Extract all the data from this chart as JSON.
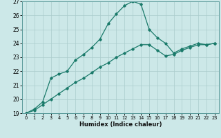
{
  "xlabel": "Humidex (Indice chaleur)",
  "ylabel": "",
  "bg_color": "#cce8e8",
  "grid_color": "#aacccc",
  "line_color": "#1a7a6a",
  "xlim": [
    -0.5,
    23.5
  ],
  "ylim": [
    19,
    27
  ],
  "xticks": [
    0,
    1,
    2,
    3,
    4,
    5,
    6,
    7,
    8,
    9,
    10,
    11,
    12,
    13,
    14,
    15,
    16,
    17,
    18,
    19,
    20,
    21,
    22,
    23
  ],
  "yticks": [
    19,
    20,
    21,
    22,
    23,
    24,
    25,
    26,
    27
  ],
  "line1_x": [
    0,
    1,
    2,
    3,
    4,
    5,
    6,
    7,
    8,
    9,
    10,
    11,
    12,
    13,
    14,
    15,
    16,
    17,
    18,
    19,
    20,
    21,
    22,
    23
  ],
  "line1_y": [
    19.0,
    19.3,
    19.8,
    21.5,
    21.8,
    22.0,
    22.8,
    23.2,
    23.7,
    24.3,
    25.4,
    26.1,
    26.7,
    27.0,
    26.8,
    25.0,
    24.4,
    24.0,
    23.3,
    23.6,
    23.8,
    24.0,
    23.9,
    24.0
  ],
  "line2_x": [
    0,
    1,
    2,
    3,
    4,
    5,
    6,
    7,
    8,
    9,
    10,
    11,
    12,
    13,
    14,
    15,
    16,
    17,
    18,
    19,
    20,
    21,
    22,
    23
  ],
  "line2_y": [
    19.0,
    19.2,
    19.6,
    20.0,
    20.4,
    20.8,
    21.2,
    21.5,
    21.9,
    22.3,
    22.6,
    23.0,
    23.3,
    23.6,
    23.9,
    23.9,
    23.5,
    23.1,
    23.2,
    23.5,
    23.7,
    23.9,
    23.9,
    24.0
  ]
}
